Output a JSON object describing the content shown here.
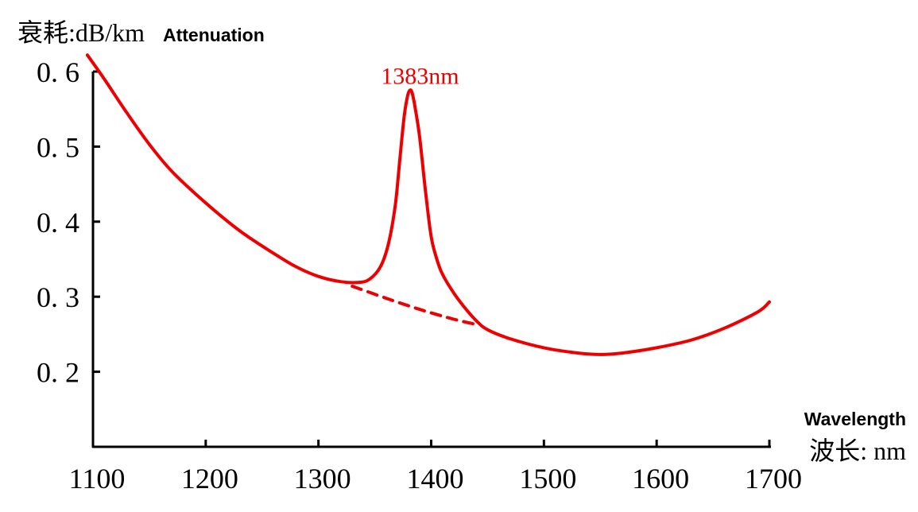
{
  "chart_data": {
    "type": "line",
    "ylabel": "衰耗:dB/km",
    "ylabel_en": "Attenuation",
    "xlabel": "波长: nm",
    "xlabel_en": "Wavelength",
    "xlim": [
      1100,
      1700
    ],
    "ylim": [
      0.1,
      0.6
    ],
    "x_ticks": [
      1100,
      1200,
      1300,
      1400,
      1500,
      1600,
      1700
    ],
    "x_tick_labels": [
      "1100",
      "1200",
      "1300",
      "1400",
      "1500",
      "1600",
      "1700"
    ],
    "y_ticks": [
      0.2,
      0.3,
      0.4,
      0.5,
      0.6
    ],
    "y_tick_labels": [
      "0. 2",
      "0. 3",
      "0. 4",
      "0. 5",
      "0. 6"
    ],
    "grid": false,
    "line_color": "#ee0000",
    "series": [
      {
        "style": "solid",
        "x": [
          1095,
          1110,
          1130,
          1150,
          1170,
          1200,
          1230,
          1260,
          1280,
          1300,
          1320,
          1335,
          1345,
          1355,
          1362,
          1368,
          1372,
          1376,
          1379,
          1381,
          1383,
          1386,
          1390,
          1395,
          1400,
          1405,
          1410,
          1420,
          1430,
          1440,
          1450,
          1470,
          1500,
          1530,
          1550,
          1570,
          1600,
          1630,
          1660,
          1690,
          1700
        ],
        "y": [
          0.622,
          0.59,
          0.545,
          0.503,
          0.467,
          0.425,
          0.388,
          0.358,
          0.34,
          0.327,
          0.32,
          0.319,
          0.323,
          0.34,
          0.37,
          0.42,
          0.48,
          0.54,
          0.567,
          0.575,
          0.572,
          0.55,
          0.51,
          0.44,
          0.38,
          0.35,
          0.33,
          0.305,
          0.285,
          0.268,
          0.256,
          0.244,
          0.232,
          0.225,
          0.223,
          0.225,
          0.232,
          0.242,
          0.258,
          0.28,
          0.293
        ]
      },
      {
        "style": "dashed",
        "x": [
          1330,
          1360,
          1390,
          1420,
          1440
        ],
        "y": [
          0.314,
          0.298,
          0.283,
          0.27,
          0.263
        ]
      }
    ],
    "annotations": [
      {
        "text": "1383nm",
        "x": 1383,
        "y": 0.575
      }
    ]
  }
}
